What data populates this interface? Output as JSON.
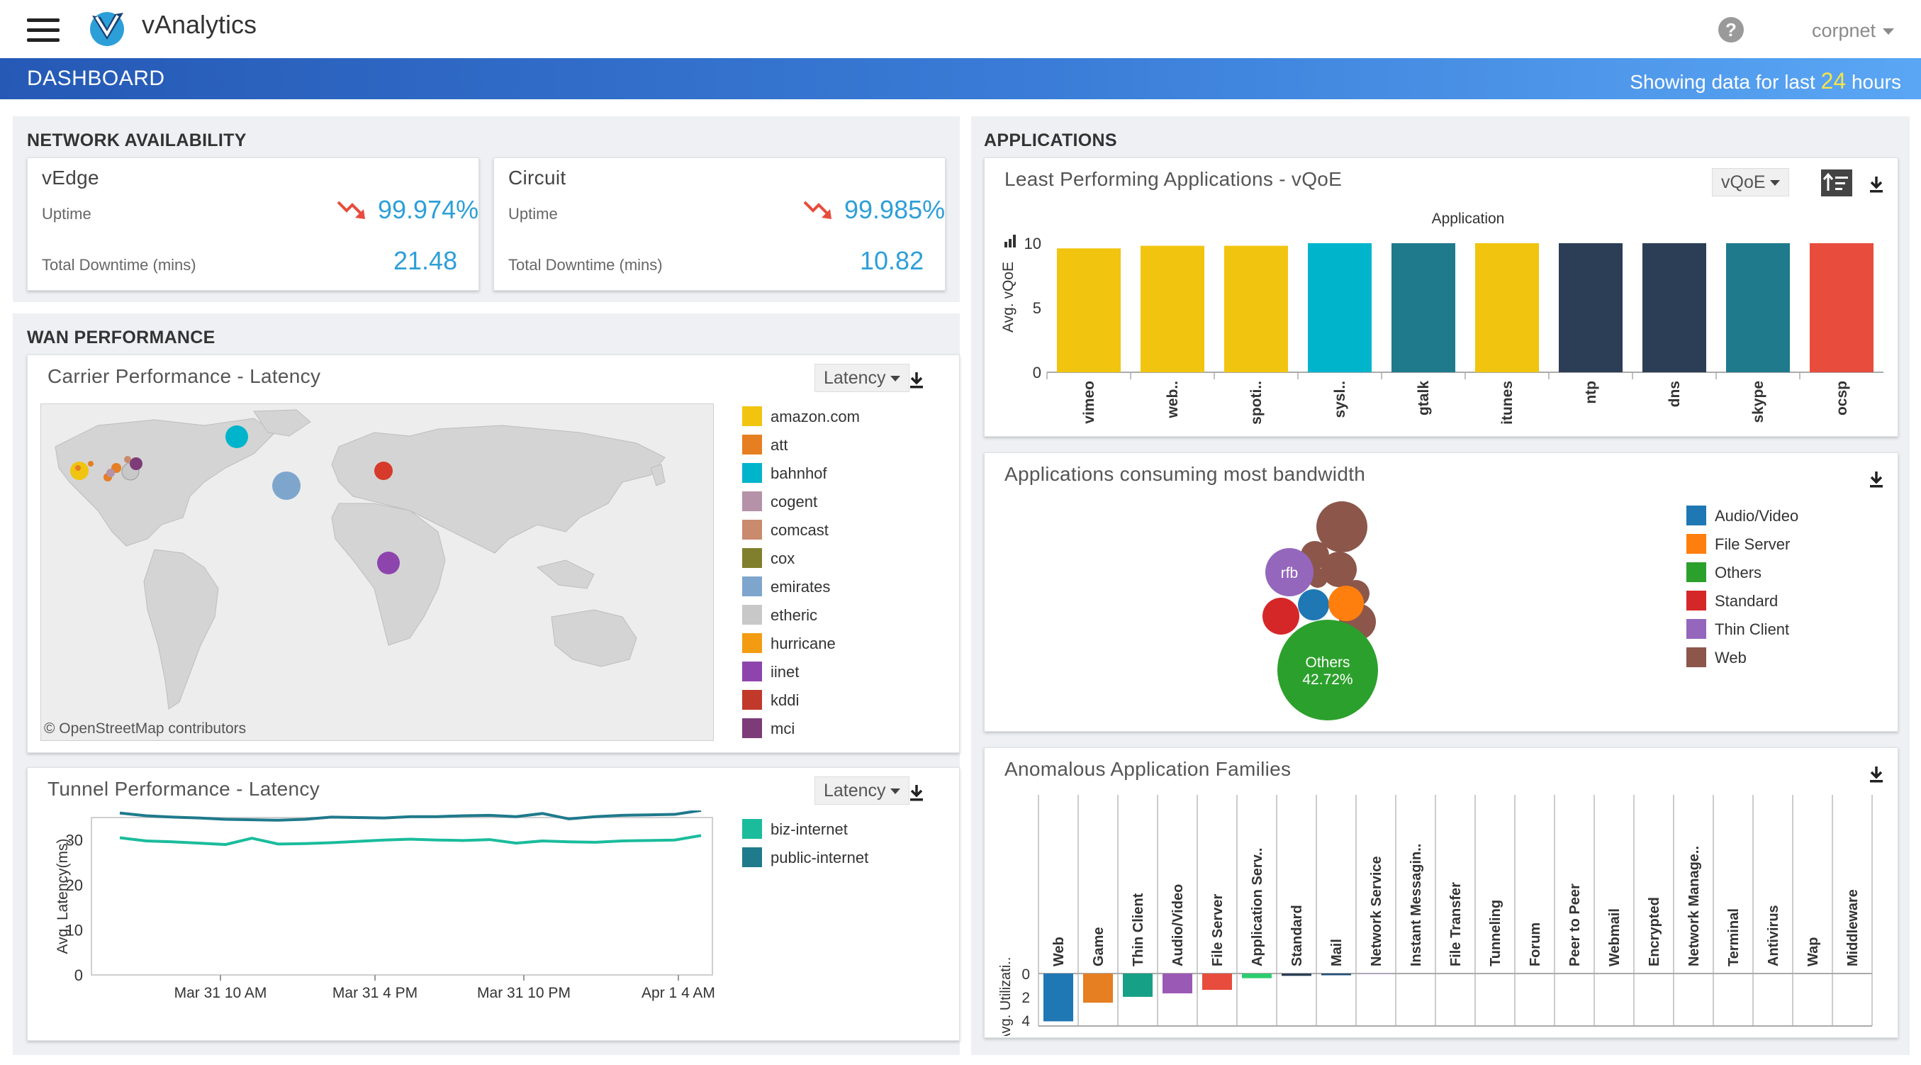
{
  "app": {
    "name": "vAnalytics",
    "user": "corpnet"
  },
  "dashboard": {
    "title": "DASHBOARD",
    "info_prefix": "Showing data for last",
    "info_value": "24",
    "info_suffix": "hours"
  },
  "network_availability": {
    "title": "NETWORK AVAILABILITY",
    "cards": [
      {
        "name": "vEdge",
        "uptime_label": "Uptime",
        "uptime_value": "99.974%",
        "downtime_label": "Total Downtime (mins)",
        "downtime_value": "21.48"
      },
      {
        "name": "Circuit",
        "uptime_label": "Uptime",
        "uptime_value": "99.985%",
        "downtime_label": "Total Downtime (mins)",
        "downtime_value": "10.82"
      }
    ]
  },
  "wan_performance": {
    "title": "WAN PERFORMANCE",
    "carrier": {
      "title": "Carrier Performance - Latency",
      "dropdown": "Latency",
      "attribution": "© OpenStreetMap contributors",
      "legend": [
        {
          "label": "amazon.com",
          "color": "#f1c40f"
        },
        {
          "label": "att",
          "color": "#e67e22"
        },
        {
          "label": "bahnhof",
          "color": "#00b4cc"
        },
        {
          "label": "cogent",
          "color": "#b592a8"
        },
        {
          "label": "comcast",
          "color": "#c98a6e"
        },
        {
          "label": "cox",
          "color": "#7f7f2e"
        },
        {
          "label": "emirates",
          "color": "#7ea6cd"
        },
        {
          "label": "etheric",
          "color": "#c8c8c8"
        },
        {
          "label": "hurricane",
          "color": "#f39c12"
        },
        {
          "label": "iinet",
          "color": "#8e44ad"
        },
        {
          "label": "kddi",
          "color": "#c0392b"
        },
        {
          "label": "mci",
          "color": "#7d3c78"
        }
      ]
    },
    "tunnel": {
      "title": "Tunnel Performance - Latency",
      "dropdown": "Latency",
      "legend": [
        {
          "label": "biz-internet",
          "color": "#1abc9c"
        },
        {
          "label": "public-internet",
          "color": "#1f7a8c"
        }
      ],
      "chart_data": {
        "type": "line",
        "ylabel": "Avg. Latency(ms)",
        "ylim": [
          0,
          35
        ],
        "yticks": [
          0,
          10,
          20,
          30
        ],
        "x_ticks": [
          "Mar 31 10 AM",
          "Mar 31 4 PM",
          "Mar 31 10 PM",
          "Apr 1 4 AM"
        ],
        "series": [
          {
            "name": "biz-internet",
            "values": [
              30.5,
              29.8,
              29.6,
              29.3,
              29.0,
              30.4,
              29.1,
              29.2,
              29.4,
              29.7,
              30.0,
              30.2,
              30.0,
              29.9,
              30.1,
              29.3,
              29.8,
              29.6,
              29.5,
              29.8,
              29.9,
              30.0,
              31.0
            ]
          },
          {
            "name": "public-internet",
            "values": [
              36.0,
              35.4,
              35.1,
              34.9,
              34.6,
              34.5,
              34.4,
              34.6,
              35.1,
              35.0,
              34.9,
              35.2,
              35.2,
              35.4,
              35.5,
              35.2,
              35.9,
              34.7,
              35.2,
              35.5,
              35.6,
              35.7,
              36.6
            ]
          }
        ]
      }
    }
  },
  "applications": {
    "title": "APPLICATIONS",
    "least": {
      "title": "Least Performing Applications - vQoE",
      "dropdown": "vQoE",
      "chart_data": {
        "type": "bar",
        "title": "Application",
        "ylabel": "Avg. vQoE",
        "ylim": [
          0,
          10
        ],
        "yticks": [
          0,
          5,
          10
        ],
        "categories": [
          "vimeo",
          "web..",
          "spoti..",
          "sysl..",
          "gtalk",
          "itunes",
          "ntp",
          "dns",
          "skype",
          "ocsp"
        ],
        "values": [
          9.6,
          9.8,
          9.8,
          10.0,
          10.0,
          10.0,
          10.0,
          10.0,
          10.0,
          10.0
        ],
        "colors": [
          "#f1c40f",
          "#f1c40f",
          "#f1c40f",
          "#00b4cc",
          "#1f7a8c",
          "#f1c40f",
          "#2c3e55",
          "#2c3e55",
          "#1f7a8c",
          "#e74c3c"
        ]
      }
    },
    "bandwidth": {
      "title": "Applications consuming most bandwidth",
      "legend": [
        {
          "label": "Audio/Video",
          "color": "#1f77b4"
        },
        {
          "label": "File Server",
          "color": "#ff7f0e"
        },
        {
          "label": "Others",
          "color": "#2ca02c"
        },
        {
          "label": "Standard",
          "color": "#d62728"
        },
        {
          "label": "Thin Client",
          "color": "#9467bd"
        },
        {
          "label": "Web",
          "color": "#8c564b"
        }
      ],
      "bubble_labels": {
        "rfb": "rfb",
        "others_name": "Others",
        "others_pct": "42.72%"
      }
    },
    "anomalous": {
      "title": "Anomalous Application Families",
      "chart_data": {
        "type": "bar",
        "ylabel": "Avg. Utilizati..",
        "yticks": [
          0,
          2,
          4
        ],
        "ylim": [
          0,
          4.5
        ],
        "categories": [
          "Web",
          "Game",
          "Thin Client",
          "Audio/Video",
          "File Server",
          "Application Serv..",
          "Standard",
          "Mail",
          "Network Service",
          "Instant Messagin..",
          "File Transfer",
          "Tunneling",
          "Forum",
          "Peer to Peer",
          "Webmail",
          "Encrypted",
          "Network Manage..",
          "Terminal",
          "Antivirus",
          "Wap",
          "Middleware"
        ],
        "values": [
          4.1,
          2.5,
          2.0,
          1.7,
          1.4,
          0.4,
          0.2,
          0.15,
          0.05,
          0,
          0,
          0,
          0,
          0,
          0,
          0,
          0,
          0,
          0,
          0,
          0
        ],
        "colors": [
          "#1f77b4",
          "#e67e22",
          "#16a085",
          "#9b59b6",
          "#e74c3c",
          "#2ecc71",
          "#2c3e55",
          "#1f4e79",
          "#c39bd3",
          "#cccccc",
          "#cccccc",
          "#cccccc",
          "#cccccc",
          "#cccccc",
          "#cccccc",
          "#cccccc",
          "#cccccc",
          "#cccccc",
          "#cccccc",
          "#cccccc",
          "#cccccc"
        ]
      }
    }
  }
}
